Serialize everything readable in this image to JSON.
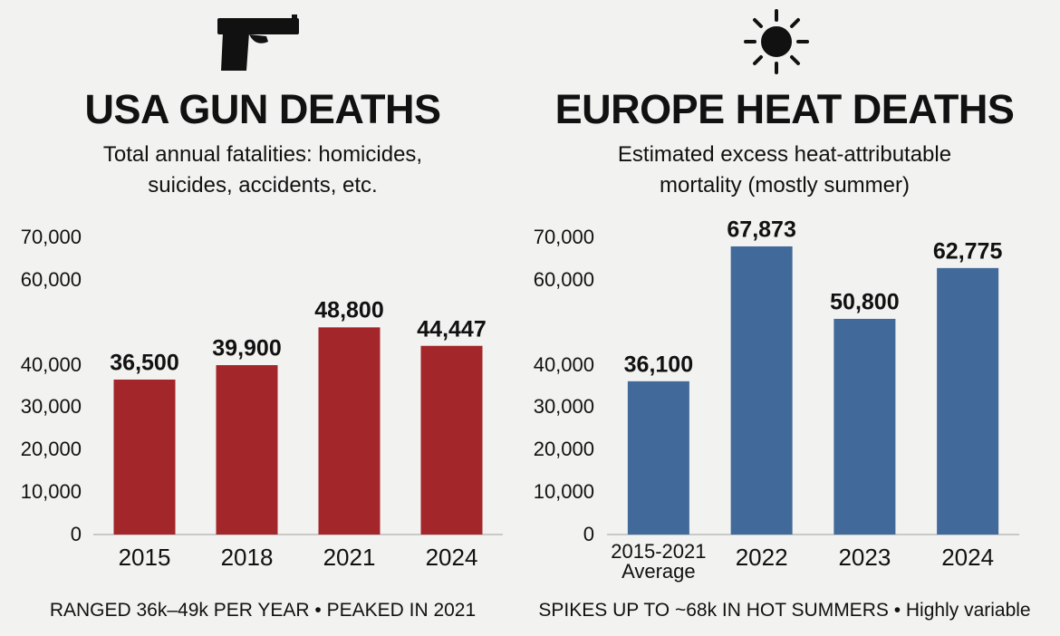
{
  "chart_data": [
    {
      "type": "bar",
      "title": "USA GUN DEATHS",
      "subtitle": "Total annual fatalities: homicides, suicides, accidents, etc.",
      "categories": [
        "2015",
        "2018",
        "2021",
        "2024"
      ],
      "values": [
        36500,
        39900,
        48800,
        44447
      ],
      "value_labels": [
        "36,500",
        "39,900",
        "48,800",
        "44,447"
      ],
      "color": "#a3262a",
      "ylim": [
        0,
        70000
      ],
      "yticks": [
        0,
        {
          "value": 10000,
          "label": "10,000"
        },
        {
          "value": 20000,
          "label": "20,000"
        },
        {
          "value": 30000,
          "label": "30,000"
        },
        {
          "value": 40000,
          "label": "40,000"
        },
        {
          "value": 60000,
          "label": "60,000"
        },
        {
          "value": 70000,
          "label": "70,000"
        }
      ],
      "grid": false,
      "footnote": "RANGED 36k–49k PER YEAR • PEAKED IN 2021"
    },
    {
      "type": "bar",
      "title": "EUROPE HEAT DEATHS",
      "subtitle": "Estimated excess heat-attributable mortality (mostly summer)",
      "categories": [
        "2015-2021 Average",
        "2022",
        "2023",
        "2024"
      ],
      "values": [
        36100,
        67873,
        50800,
        62775
      ],
      "value_labels": [
        "36,100",
        "67,873",
        "50,800",
        "62,775"
      ],
      "color": "#41699a",
      "ylim": [
        0,
        70000
      ],
      "yticks": [
        0,
        {
          "value": 10000,
          "label": "10,000"
        },
        {
          "value": 20000,
          "label": "20,000"
        },
        {
          "value": 30000,
          "label": "30,000"
        },
        {
          "value": 40000,
          "label": "40,000"
        },
        {
          "value": 60000,
          "label": "60,000"
        },
        {
          "value": 70000,
          "label": "70,000"
        }
      ],
      "grid": false,
      "footnote": "SPIKES UP TO ~68k IN HOT SUMMERS • Highly variable"
    }
  ]
}
